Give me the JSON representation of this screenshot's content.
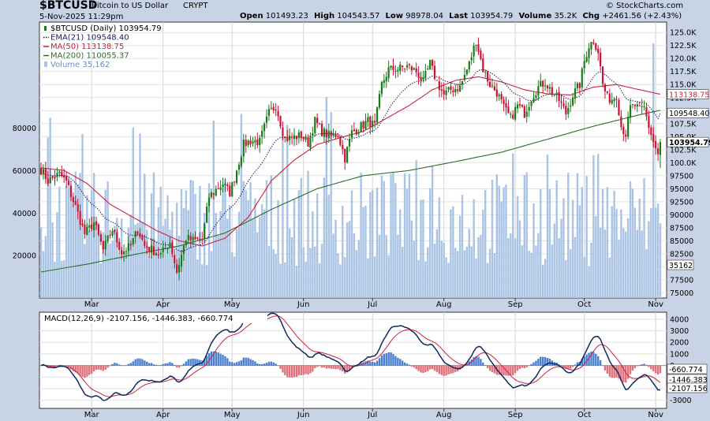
{
  "header": {
    "symbol": "$BTCUSD",
    "name": "Bitcoin to US Dollar",
    "exchange": "CRYPT",
    "date": "5-Nov-2025 11:29pm",
    "copyright": "© StockCharts.com",
    "open_label": "Open",
    "open": "101493.23",
    "high_label": "High",
    "high": "104543.57",
    "low_label": "Low",
    "low": "98978.04",
    "last_label": "Last",
    "last": "103954.79",
    "volume_label": "Volume",
    "volume": "35.2K",
    "chg_label": "Chg",
    "chg": "+2461.56 (+2.43%)"
  },
  "colors": {
    "background": "#c8d4e6",
    "plot_bg": "#ffffff",
    "up": "#1a7a1a",
    "down": "#cc1133",
    "ema21": "#1c1c6a",
    "ma50": "#d0203c",
    "ma200": "#2a6e2a",
    "volume": "#a9c4e4",
    "macd": "#102a5e",
    "signal": "#d0203c",
    "hist_up": "#4a7fd0",
    "hist_down": "#e0707a"
  },
  "chart_data": [
    {
      "type": "candlestick",
      "title": "$BTCUSD (Daily) 103954.79",
      "legend": [
        {
          "label": "$BTCUSD (Daily) 103954.79",
          "color": "#1a7a1a"
        },
        {
          "label": "EMA(21) 109548.40",
          "color": "#1c1c6a"
        },
        {
          "label": "MA(50) 113138.75",
          "color": "#d0203c"
        },
        {
          "label": "MA(200) 110055.37",
          "color": "#2a6e2a"
        },
        {
          "label": "Volume 35,162",
          "color": "#6a8fc0"
        }
      ],
      "legend_position": "top-left",
      "x_labels": [
        "Mar",
        "Apr",
        "May",
        "Jun",
        "Jul",
        "Aug",
        "Sep",
        "Oct",
        "Nov"
      ],
      "x_label_days": [
        22,
        53,
        83,
        114,
        144,
        175,
        206,
        236,
        267
      ],
      "y_ticks": [
        75000,
        77500,
        80000,
        82500,
        85000,
        87500,
        90000,
        92500,
        95000,
        97500,
        100000,
        102500,
        105000,
        107500,
        110000,
        112500,
        115000,
        117500,
        120000,
        122500,
        125000
      ],
      "y_tick_labels": [
        "75000",
        "77500",
        "80000",
        "82500",
        "85000",
        "87500",
        "90000",
        "92500",
        "95000",
        "97500",
        "100.0K",
        "102.5K",
        "105.0K",
        "107.5K",
        "110.0K",
        "112.5K",
        "115.0K",
        "117.5K",
        "120.0K",
        "122.5K",
        "125.0K"
      ],
      "ylim": [
        74000,
        127000
      ],
      "price_anchors": [
        [
          0,
          98700
        ],
        [
          3,
          96500
        ],
        [
          8,
          97800
        ],
        [
          11,
          96300
        ],
        [
          15,
          91500
        ],
        [
          19,
          86300
        ],
        [
          23,
          88500
        ],
        [
          27,
          83200
        ],
        [
          31,
          87200
        ],
        [
          35,
          82800
        ],
        [
          39,
          84000
        ],
        [
          42,
          87200
        ],
        [
          45,
          84000
        ],
        [
          49,
          83100
        ],
        [
          52,
          82300
        ],
        [
          56,
          84800
        ],
        [
          59,
          79000
        ],
        [
          63,
          85500
        ],
        [
          66,
          85000
        ],
        [
          70,
          85200
        ],
        [
          73,
          93500
        ],
        [
          76,
          94800
        ],
        [
          79,
          96000
        ],
        [
          82,
          94200
        ],
        [
          84,
          97000
        ],
        [
          88,
          103500
        ],
        [
          91,
          104200
        ],
        [
          95,
          104000
        ],
        [
          99,
          109500
        ],
        [
          102,
          111000
        ],
        [
          106,
          104500
        ],
        [
          109,
          104800
        ],
        [
          113,
          105200
        ],
        [
          116,
          103800
        ],
        [
          119,
          108000
        ],
        [
          122,
          106000
        ],
        [
          126,
          105000
        ],
        [
          129,
          105500
        ],
        [
          132,
          100900
        ],
        [
          135,
          105800
        ],
        [
          138,
          106600
        ],
        [
          142,
          108000
        ],
        [
          145,
          107000
        ],
        [
          148,
          115000
        ],
        [
          151,
          117900
        ],
        [
          155,
          118000
        ],
        [
          159,
          118500
        ],
        [
          163,
          117500
        ],
        [
          166,
          115500
        ],
        [
          169,
          119000
        ],
        [
          172,
          115500
        ],
        [
          175,
          113000
        ],
        [
          178,
          114000
        ],
        [
          182,
          114500
        ],
        [
          186,
          119000
        ],
        [
          189,
          123500
        ],
        [
          192,
          118000
        ],
        [
          195,
          115000
        ],
        [
          198,
          113500
        ],
        [
          201,
          110500
        ],
        [
          204,
          108500
        ],
        [
          207,
          111000
        ],
        [
          210,
          109500
        ],
        [
          213,
          112500
        ],
        [
          216,
          114500
        ],
        [
          219,
          115500
        ],
        [
          222,
          113500
        ],
        [
          225,
          112000
        ],
        [
          228,
          109500
        ],
        [
          231,
          113000
        ],
        [
          234,
          115000
        ],
        [
          236,
          119500
        ],
        [
          238,
          122500
        ],
        [
          240,
          123500
        ],
        [
          242,
          121500
        ],
        [
          244,
          115000
        ],
        [
          246,
          112500
        ],
        [
          248,
          112200
        ],
        [
          250,
          113000
        ],
        [
          252,
          107000
        ],
        [
          254,
          105500
        ],
        [
          256,
          110500
        ],
        [
          258,
          111000
        ],
        [
          260,
          110000
        ],
        [
          262,
          110500
        ],
        [
          264,
          107000
        ],
        [
          266,
          104000
        ],
        [
          268,
          101500
        ],
        [
          269,
          103955
        ]
      ],
      "last_day": 269,
      "ma50_anchors": [
        [
          0,
          99000
        ],
        [
          10,
          98500
        ],
        [
          20,
          96000
        ],
        [
          30,
          92000
        ],
        [
          40,
          89500
        ],
        [
          50,
          87000
        ],
        [
          60,
          85000
        ],
        [
          70,
          84000
        ],
        [
          80,
          85500
        ],
        [
          90,
          89500
        ],
        [
          100,
          96500
        ],
        [
          110,
          100500
        ],
        [
          120,
          103500
        ],
        [
          130,
          104800
        ],
        [
          140,
          106000
        ],
        [
          150,
          108500
        ],
        [
          160,
          111000
        ],
        [
          170,
          114000
        ],
        [
          180,
          115800
        ],
        [
          190,
          116500
        ],
        [
          200,
          115500
        ],
        [
          210,
          114000
        ],
        [
          220,
          113200
        ],
        [
          230,
          113000
        ],
        [
          240,
          114500
        ],
        [
          250,
          115000
        ],
        [
          260,
          114000
        ],
        [
          269,
          113139
        ]
      ],
      "ma200_anchors": [
        [
          0,
          79000
        ],
        [
          20,
          80500
        ],
        [
          40,
          82300
        ],
        [
          60,
          84000
        ],
        [
          80,
          86500
        ],
        [
          100,
          91000
        ],
        [
          120,
          95000
        ],
        [
          140,
          97500
        ],
        [
          160,
          98500
        ],
        [
          180,
          100200
        ],
        [
          200,
          102000
        ],
        [
          220,
          104500
        ],
        [
          240,
          107000
        ],
        [
          260,
          109200
        ],
        [
          269,
          110055
        ]
      ],
      "volume_ticks": [
        20000,
        40000,
        60000,
        80000
      ],
      "volume_max": 130000,
      "volume_last": "35162"
    },
    {
      "type": "line",
      "title": "MACD(12,26,9) -2107.156, -1446.383, -660.774",
      "series": [
        {
          "name": "MACD(12,26,9)",
          "last": -2107.156
        },
        {
          "name": "Signal",
          "last": -1446.383
        },
        {
          "name": "Histogram",
          "last": -660.774
        }
      ],
      "y_ticks": [
        -3000,
        -2000,
        -1000,
        0,
        1000,
        2000,
        3000,
        4000
      ],
      "y_tick_labels": [
        "-3000",
        "-2000",
        "-1000",
        "0",
        "1000",
        "2000",
        "3000",
        "4000"
      ],
      "ylim": [
        -3700,
        4600
      ],
      "last_labels": [
        "-660.774",
        "-1446.383",
        "-2107.156"
      ],
      "last_label_values": [
        -660.774,
        -1446.383,
        -2107.156
      ]
    }
  ]
}
